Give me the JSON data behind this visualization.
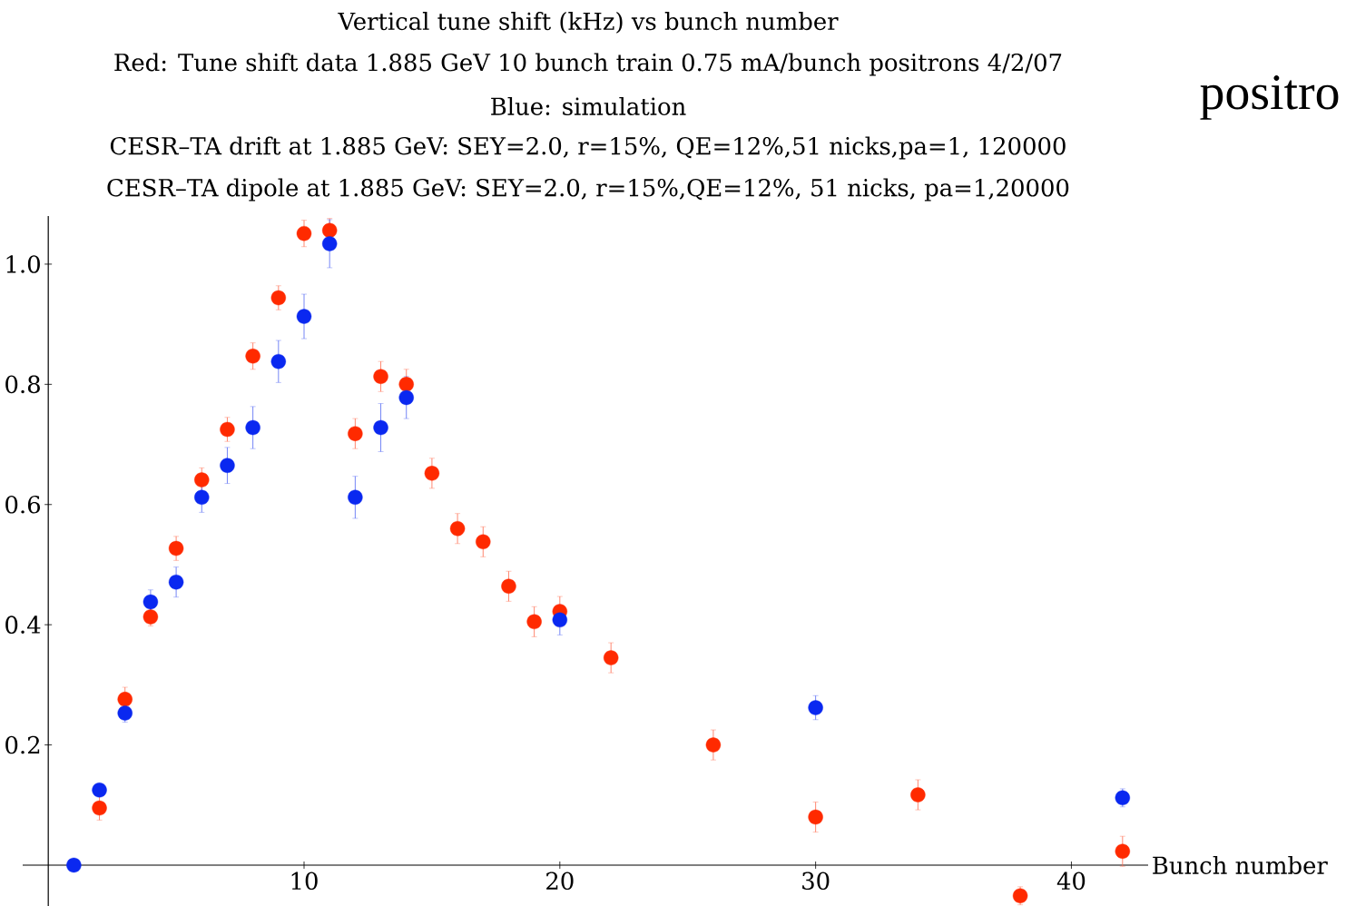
{
  "chart_data": {
    "type": "scatter",
    "title": "Vertical tune shift (kHz) vs bunch number",
    "annotations": [
      "Red: Tune shift data 1.885 GeV 10 bunch train 0.75 mA/bunch  positrons 4/2/07",
      "Blue: simulation",
      "CESR–TA drift at 1.885 GeV: SEY=2.0, r=15%, QE=12%,51 nicks,pa=1, 120000",
      "CESR–TA dipole at 1.885 GeV: SEY=2.0, r=15%,QE=12%, 51 nicks, pa=1,20000",
      "positro"
    ],
    "xlabel": "Bunch number",
    "xlim": [
      -1,
      43
    ],
    "ylim": [
      -0.068,
      1.08
    ],
    "xticks": [
      10,
      20,
      30,
      40
    ],
    "yticks": [
      {
        "value": 0.2,
        "label": "0.2"
      },
      {
        "value": 0.4,
        "label": "0.4"
      },
      {
        "value": 0.6,
        "label": "0.6"
      },
      {
        "value": 0.8,
        "label": "0.8"
      },
      {
        "value": 1.0,
        "label": "1.0"
      }
    ],
    "marker": "circle",
    "grid": false,
    "series": [
      {
        "color": "#ff2a00",
        "x": [
          2,
          3,
          4,
          5,
          6,
          7,
          8,
          9,
          10,
          11,
          12,
          13,
          14,
          15,
          16,
          17,
          18,
          19,
          20,
          22,
          26,
          30,
          34,
          38,
          42
        ],
        "values": [
          0.095,
          0.276,
          0.413,
          0.527,
          0.641,
          0.725,
          0.847,
          0.944,
          1.051,
          1.056,
          0.718,
          0.813,
          0.8,
          0.652,
          0.56,
          0.538,
          0.464,
          0.405,
          0.422,
          0.345,
          0.2,
          0.08,
          0.117,
          -0.051,
          0.023
        ],
        "errors": [
          0.02,
          0.02,
          0.015,
          0.02,
          0.02,
          0.02,
          0.022,
          0.02,
          0.022,
          0.02,
          0.025,
          0.025,
          0.025,
          0.025,
          0.025,
          0.025,
          0.025,
          0.025,
          0.025,
          0.025,
          0.025,
          0.025,
          0.025,
          0.015,
          0.025
        ]
      },
      {
        "color": "#0a28f0",
        "x": [
          1,
          2,
          3,
          4,
          5,
          6,
          7,
          8,
          9,
          10,
          11,
          12,
          13,
          14,
          20,
          30,
          42
        ],
        "values": [
          0.0,
          0.125,
          0.253,
          0.438,
          0.471,
          0.612,
          0.665,
          0.728,
          0.838,
          0.913,
          1.034,
          0.612,
          0.728,
          0.778,
          0.408,
          0.262,
          0.112
        ],
        "errors": [
          0.005,
          0.01,
          0.015,
          0.02,
          0.025,
          0.025,
          0.03,
          0.035,
          0.035,
          0.037,
          0.04,
          0.035,
          0.04,
          0.035,
          0.025,
          0.02,
          0.015
        ]
      }
    ]
  }
}
